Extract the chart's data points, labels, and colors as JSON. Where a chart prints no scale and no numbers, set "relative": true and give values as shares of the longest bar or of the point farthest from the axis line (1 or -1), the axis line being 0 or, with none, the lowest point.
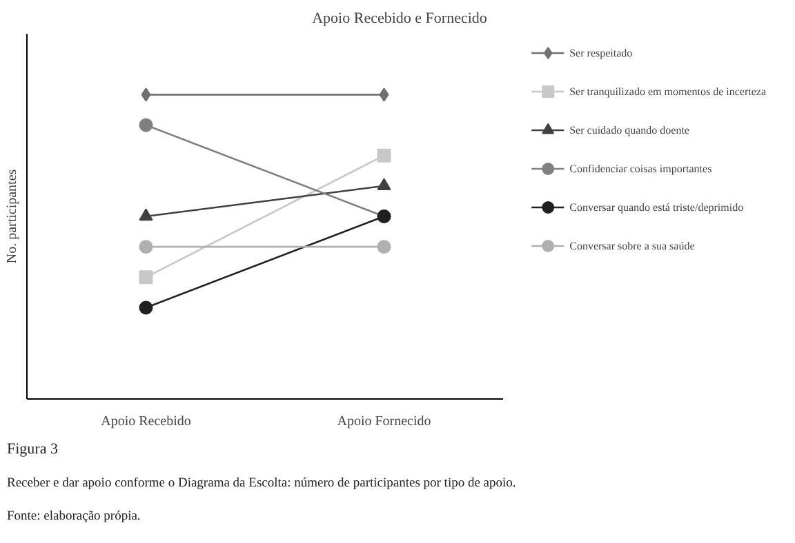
{
  "chart_data": {
    "type": "line",
    "title": "Apoio Recebido e Fornecido",
    "ylabel": "No. participantes",
    "relative": true,
    "categories": [
      "Apoio Recebido",
      "Apoio Fornecido"
    ],
    "legend": "right",
    "series": [
      {
        "name": "Ser respeitado",
        "color": "#707070",
        "marker": "diamond",
        "values": [
          1,
          1
        ]
      },
      {
        "name": "Ser tranquilizado em momentos de incerteza",
        "color": "#c8c8c8",
        "marker": "square",
        "values": [
          0.4,
          0.8
        ]
      },
      {
        "name": "Ser cuidado quando doente",
        "color": "#404040",
        "marker": "triangle",
        "values": [
          0.6,
          0.7
        ]
      },
      {
        "name": "Confidenciar coisas importantes",
        "color": "#808080",
        "marker": "circle",
        "values": [
          0.9,
          0.6
        ]
      },
      {
        "name": "Conversar quando está triste/deprimido",
        "color": "#202020",
        "marker": "circle",
        "values": [
          0.3,
          0.6
        ]
      },
      {
        "name": "Conversar sobre a sua saúde",
        "color": "#b0b0b0",
        "marker": "circle",
        "values": [
          0.5,
          0.5
        ]
      }
    ],
    "annotations": [
      "Figura 3",
      "Receber e dar apoio conforme o Diagrama da Escolta: número de participantes por tipo de apoio.",
      "Fonte: elaboração própia."
    ]
  }
}
